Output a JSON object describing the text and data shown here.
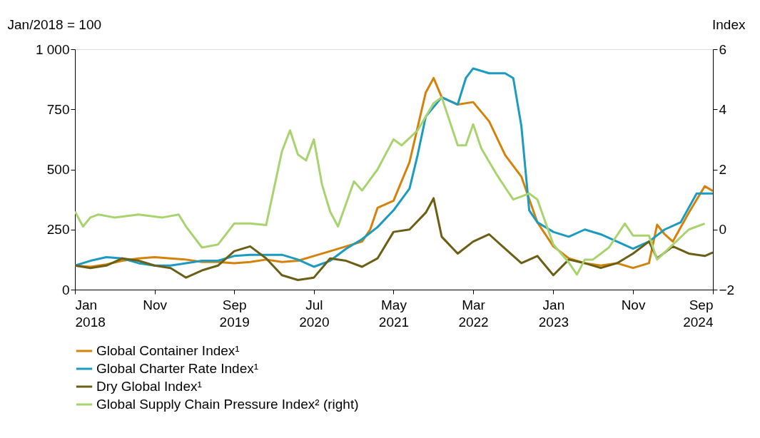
{
  "chart_data": {
    "type": "line",
    "ylabel": "Jan/2018 = 100",
    "y2label": "Index",
    "xlim": [
      "2018-01",
      "2024-09"
    ],
    "xticks": [
      {
        "value": "2018-01",
        "label": "Jan 2018"
      },
      {
        "value": "2018-11",
        "label": "Nov"
      },
      {
        "value": "2019-09",
        "label": "Sep 2019"
      },
      {
        "value": "2020-07",
        "label": "Jul 2020"
      },
      {
        "value": "2021-05",
        "label": "May 2021"
      },
      {
        "value": "2022-03",
        "label": "Mar 2022"
      },
      {
        "value": "2023-01",
        "label": "Jan 2023"
      },
      {
        "value": "2023-11",
        "label": "Nov"
      },
      {
        "value": "2024-09",
        "label": "Sep 2024"
      }
    ],
    "ylim": [
      0,
      1000
    ],
    "yticks": [
      0,
      250,
      500,
      750,
      {
        "value": 1000,
        "label": "1 000"
      }
    ],
    "y2lim": [
      -2,
      6
    ],
    "y2ticks": [
      -2,
      0,
      2,
      4,
      6
    ],
    "grid": false,
    "legend": "bottom",
    "line_style": "solid",
    "marker": "none",
    "series": [
      {
        "name": "Global Container Index¹",
        "color": "#d4820a",
        "x": [
          "2018-01",
          "2018-03",
          "2018-05",
          "2018-07",
          "2018-09",
          "2018-11",
          "2019-01",
          "2019-03",
          "2019-05",
          "2019-07",
          "2019-09",
          "2019-11",
          "2020-01",
          "2020-03",
          "2020-05",
          "2020-07",
          "2020-09",
          "2020-11",
          "2021-01",
          "2021-02",
          "2021-03",
          "2021-05",
          "2021-07",
          "2021-09",
          "2021-10",
          "2021-11",
          "2022-01",
          "2022-03",
          "2022-05",
          "2022-07",
          "2022-09",
          "2022-11",
          "2023-01",
          "2023-03",
          "2023-05",
          "2023-07",
          "2023-09",
          "2023-11",
          "2024-01",
          "2024-02",
          "2024-03",
          "2024-04",
          "2024-06",
          "2024-08",
          "2024-09"
        ],
        "values": [
          100,
          95,
          105,
          120,
          130,
          135,
          130,
          125,
          115,
          115,
          110,
          115,
          125,
          115,
          120,
          140,
          160,
          180,
          200,
          250,
          340,
          370,
          530,
          820,
          880,
          800,
          770,
          780,
          700,
          560,
          470,
          280,
          180,
          130,
          110,
          100,
          110,
          90,
          110,
          270,
          230,
          200,
          320,
          430,
          410
        ]
      },
      {
        "name": "Global Charter Rate Index¹",
        "color": "#1a9bbf",
        "x": [
          "2018-01",
          "2018-03",
          "2018-05",
          "2018-07",
          "2018-09",
          "2018-11",
          "2019-01",
          "2019-03",
          "2019-05",
          "2019-07",
          "2019-09",
          "2019-11",
          "2020-01",
          "2020-03",
          "2020-05",
          "2020-07",
          "2020-09",
          "2020-11",
          "2021-01",
          "2021-03",
          "2021-05",
          "2021-07",
          "2021-08",
          "2021-09",
          "2021-11",
          "2022-01",
          "2022-02",
          "2022-03",
          "2022-05",
          "2022-07",
          "2022-08",
          "2022-09",
          "2022-10",
          "2022-11",
          "2023-01",
          "2023-03",
          "2023-05",
          "2023-07",
          "2023-09",
          "2023-11",
          "2024-01",
          "2024-03",
          "2024-05",
          "2024-07",
          "2024-09"
        ],
        "values": [
          100,
          120,
          135,
          130,
          110,
          100,
          100,
          110,
          120,
          120,
          140,
          145,
          145,
          145,
          125,
          95,
          120,
          170,
          210,
          260,
          330,
          420,
          560,
          720,
          800,
          770,
          880,
          920,
          900,
          900,
          880,
          680,
          330,
          280,
          240,
          220,
          250,
          230,
          200,
          170,
          200,
          250,
          280,
          400,
          400
        ]
      },
      {
        "name": "Dry Global Index¹",
        "color": "#6b5f16",
        "x": [
          "2018-01",
          "2018-03",
          "2018-05",
          "2018-07",
          "2018-09",
          "2018-11",
          "2019-01",
          "2019-03",
          "2019-05",
          "2019-07",
          "2019-09",
          "2019-11",
          "2020-01",
          "2020-03",
          "2020-05",
          "2020-07",
          "2020-09",
          "2020-11",
          "2021-01",
          "2021-03",
          "2021-05",
          "2021-07",
          "2021-09",
          "2021-10",
          "2021-11",
          "2022-01",
          "2022-03",
          "2022-05",
          "2022-07",
          "2022-09",
          "2022-11",
          "2023-01",
          "2023-03",
          "2023-05",
          "2023-07",
          "2023-09",
          "2023-11",
          "2024-01",
          "2024-02",
          "2024-04",
          "2024-06",
          "2024-08",
          "2024-09"
        ],
        "values": [
          100,
          90,
          100,
          130,
          120,
          100,
          90,
          50,
          80,
          100,
          160,
          180,
          130,
          60,
          40,
          50,
          130,
          120,
          95,
          130,
          240,
          250,
          320,
          380,
          220,
          150,
          200,
          230,
          170,
          110,
          140,
          60,
          125,
          110,
          90,
          110,
          150,
          200,
          130,
          180,
          150,
          140,
          155
        ]
      },
      {
        "name": "Global Supply Chain Pressure Index² (right)",
        "color": "#a9d36e",
        "axis": "y2",
        "x": [
          "2018-01",
          "2018-02",
          "2018-03",
          "2018-04",
          "2018-06",
          "2018-09",
          "2018-12",
          "2019-02",
          "2019-03",
          "2019-05",
          "2019-07",
          "2019-09",
          "2019-11",
          "2020-01",
          "2020-03",
          "2020-04",
          "2020-05",
          "2020-06",
          "2020-07",
          "2020-08",
          "2020-09",
          "2020-10",
          "2020-12",
          "2021-01",
          "2021-03",
          "2021-05",
          "2021-06",
          "2021-08",
          "2021-10",
          "2021-11",
          "2022-01",
          "2022-02",
          "2022-03",
          "2022-04",
          "2022-06",
          "2022-07",
          "2022-08",
          "2022-09",
          "2022-10",
          "2022-11",
          "2023-01",
          "2023-03",
          "2023-04",
          "2023-05",
          "2023-06",
          "2023-08",
          "2023-10",
          "2023-11",
          "2024-01",
          "2024-02",
          "2024-04",
          "2024-06",
          "2024-08"
        ],
        "values": [
          0.6,
          0.1,
          0.4,
          0.5,
          0.4,
          0.5,
          0.4,
          0.5,
          0.1,
          -0.6,
          -0.5,
          0.2,
          0.2,
          0.15,
          2.6,
          3.3,
          2.5,
          2.3,
          3.0,
          1.5,
          0.6,
          0.1,
          1.6,
          1.3,
          2.0,
          3.0,
          2.8,
          3.3,
          4.2,
          4.4,
          2.8,
          2.8,
          3.5,
          2.7,
          1.8,
          1.4,
          1.0,
          1.1,
          1.2,
          1.0,
          -0.5,
          -1.1,
          -1.5,
          -1.0,
          -1.0,
          -0.6,
          0.2,
          -0.2,
          -0.2,
          -1.0,
          -0.5,
          0.0,
          0.2
        ]
      }
    ]
  }
}
